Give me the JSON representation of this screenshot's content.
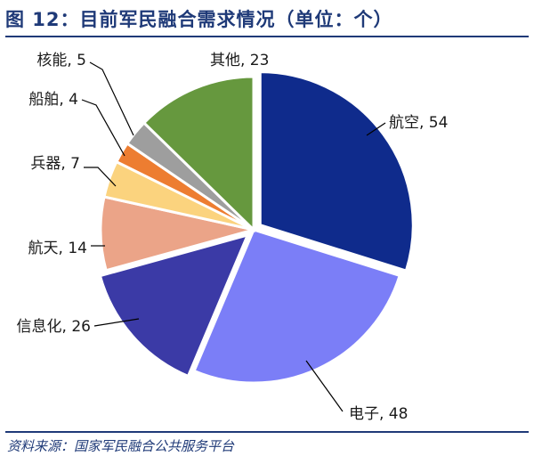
{
  "figure": {
    "title": "图 12：目前军民融合需求情况（单位：个）",
    "source": "资料来源：国家军民融合公共服务平台"
  },
  "chart_data": {
    "type": "pie",
    "title": "图 12：目前军民融合需求情况（单位：个）",
    "slices": [
      {
        "label": "航空",
        "value": 54,
        "display": "航空, 54",
        "color": "#0f2b8c",
        "exploded": true
      },
      {
        "label": "电子",
        "value": 48,
        "display": "电子, 48",
        "color": "#7b7ef7",
        "exploded": false
      },
      {
        "label": "信息化",
        "value": 26,
        "display": "信息化, 26",
        "color": "#3b3aa6",
        "exploded": true
      },
      {
        "label": "航天",
        "value": 14,
        "display": "航天, 14",
        "color": "#eba488",
        "exploded": false
      },
      {
        "label": "兵器",
        "value": 7,
        "display": "兵器, 7",
        "color": "#fbd37e",
        "exploded": false
      },
      {
        "label": "船舶",
        "value": 4,
        "display": "船舶, 4",
        "color": "#ed7d31",
        "exploded": false
      },
      {
        "label": "核能",
        "value": 5,
        "display": "核能, 5",
        "color": "#9e9e9e",
        "exploded": false
      },
      {
        "label": "其他",
        "value": 23,
        "display": "其他, 23",
        "color": "#66983e",
        "exploded": false
      }
    ]
  }
}
